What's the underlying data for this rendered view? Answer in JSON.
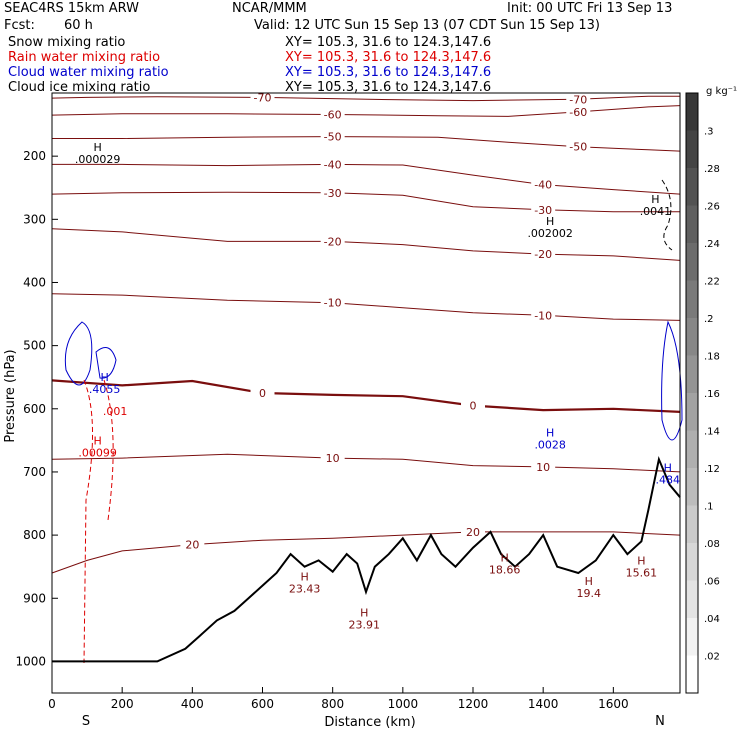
{
  "header": {
    "model": "SEAC4RS 15km ARW",
    "center": "NCAR/MMM",
    "init": "Init: 00 UTC Fri 13 Sep 13",
    "fcst_label": "Fcst:",
    "fcst_value": "60 h",
    "valid": "Valid: 12 UTC Sun 15 Sep 13 (07 CDT Sun 15 Sep 13)"
  },
  "legend": [
    {
      "label": "Snow mixing ratio",
      "xy": "XY= 105.3, 31.6 to 124.3,147.6",
      "color": "#000000"
    },
    {
      "label": "Rain water mixing ratio",
      "xy": "XY= 105.3, 31.6 to 124.3,147.6",
      "color": "#dd0000"
    },
    {
      "label": "Cloud water mixing ratio",
      "xy": "XY= 105.3, 31.6 to 124.3,147.6",
      "color": "#0000cc"
    },
    {
      "label": "Cloud ice mixing ratio",
      "xy": "XY= 105.3, 31.6 to 124.3,147.6",
      "color": "#000000"
    }
  ],
  "chart_data": {
    "type": "line",
    "xlabel": "Distance (km)",
    "ylabel": "Pressure (hPa)",
    "xlim": [
      0,
      1790
    ],
    "ylim": [
      1050,
      100
    ],
    "x_ticks": [
      0,
      200,
      400,
      600,
      800,
      1000,
      1200,
      1400,
      1600
    ],
    "y_ticks": [
      200,
      300,
      400,
      500,
      600,
      700,
      800,
      900,
      1000
    ],
    "endpoints": {
      "left": "S",
      "right": "N"
    },
    "colorbar": {
      "unit": "g kg⁻¹",
      "ticks": [
        ".02",
        ".04",
        ".06",
        ".08",
        ".1",
        ".12",
        ".14",
        ".16",
        ".18",
        ".2",
        ".22",
        ".24",
        ".26",
        ".28",
        ".3"
      ]
    },
    "temperature_contours": [
      {
        "label": "-70",
        "color": "#7a0e0e",
        "points": [
          [
            0,
            108
          ],
          [
            100,
            107
          ],
          [
            300,
            106
          ],
          [
            600,
            107
          ],
          [
            900,
            110
          ],
          [
            1200,
            112
          ],
          [
            1500,
            110
          ],
          [
            1700,
            105
          ],
          [
            1790,
            105
          ]
        ]
      },
      {
        "label": "-60",
        "color": "#7a0e0e",
        "points": [
          [
            0,
            135
          ],
          [
            200,
            133
          ],
          [
            500,
            133
          ],
          [
            800,
            134
          ],
          [
            1100,
            136
          ],
          [
            1300,
            137
          ],
          [
            1500,
            130
          ],
          [
            1700,
            122
          ],
          [
            1790,
            120
          ]
        ]
      },
      {
        "label": "-50",
        "color": "#7a0e0e",
        "points": [
          [
            0,
            172
          ],
          [
            200,
            172
          ],
          [
            500,
            170
          ],
          [
            800,
            169
          ],
          [
            1100,
            170
          ],
          [
            1300,
            178
          ],
          [
            1500,
            185
          ],
          [
            1700,
            190
          ],
          [
            1790,
            192
          ]
        ]
      },
      {
        "label": "-40",
        "color": "#7a0e0e",
        "points": [
          [
            0,
            213
          ],
          [
            200,
            213
          ],
          [
            500,
            215
          ],
          [
            800,
            213
          ],
          [
            1000,
            214
          ],
          [
            1200,
            230
          ],
          [
            1400,
            245
          ],
          [
            1600,
            253
          ],
          [
            1790,
            260
          ]
        ]
      },
      {
        "label": "-30",
        "color": "#7a0e0e",
        "points": [
          [
            0,
            260
          ],
          [
            200,
            258
          ],
          [
            500,
            257
          ],
          [
            800,
            258
          ],
          [
            1000,
            262
          ],
          [
            1200,
            280
          ],
          [
            1400,
            285
          ],
          [
            1600,
            288
          ],
          [
            1790,
            288
          ]
        ]
      },
      {
        "label": "-20",
        "color": "#7a0e0e",
        "points": [
          [
            0,
            315
          ],
          [
            200,
            320
          ],
          [
            500,
            335
          ],
          [
            800,
            335
          ],
          [
            1000,
            340
          ],
          [
            1200,
            350
          ],
          [
            1400,
            355
          ],
          [
            1600,
            358
          ],
          [
            1790,
            365
          ]
        ]
      },
      {
        "label": "-10",
        "color": "#7a0e0e",
        "points": [
          [
            0,
            418
          ],
          [
            200,
            420
          ],
          [
            500,
            428
          ],
          [
            800,
            432
          ],
          [
            1000,
            440
          ],
          [
            1200,
            448
          ],
          [
            1400,
            452
          ],
          [
            1600,
            458
          ],
          [
            1790,
            460
          ]
        ]
      },
      {
        "label": "0",
        "color": "#7a0e0e",
        "bold": true,
        "points": [
          [
            0,
            555
          ],
          [
            200,
            563
          ],
          [
            400,
            556
          ],
          [
            600,
            575
          ],
          [
            800,
            578
          ],
          [
            1000,
            580
          ],
          [
            1200,
            595
          ],
          [
            1400,
            602
          ],
          [
            1600,
            600
          ],
          [
            1790,
            605
          ]
        ]
      },
      {
        "label": "10",
        "color": "#7a0e0e",
        "points": [
          [
            0,
            680
          ],
          [
            200,
            678
          ],
          [
            500,
            672
          ],
          [
            800,
            678
          ],
          [
            1000,
            680
          ],
          [
            1200,
            690
          ],
          [
            1400,
            692
          ],
          [
            1600,
            695
          ],
          [
            1790,
            700
          ]
        ]
      },
      {
        "label": "20",
        "color": "#7a0e0e",
        "points": [
          [
            0,
            860
          ],
          [
            100,
            840
          ],
          [
            200,
            825
          ],
          [
            400,
            815
          ],
          [
            600,
            808
          ],
          [
            800,
            805
          ],
          [
            1000,
            800
          ],
          [
            1200,
            795
          ],
          [
            1400,
            795
          ],
          [
            1600,
            795
          ],
          [
            1790,
            800
          ]
        ]
      }
    ],
    "terrain": [
      [
        0,
        1000
      ],
      [
        150,
        1000
      ],
      [
        300,
        1000
      ],
      [
        380,
        980
      ],
      [
        420,
        960
      ],
      [
        470,
        935
      ],
      [
        520,
        920
      ],
      [
        560,
        900
      ],
      [
        600,
        880
      ],
      [
        640,
        860
      ],
      [
        680,
        830
      ],
      [
        720,
        850
      ],
      [
        760,
        840
      ],
      [
        800,
        858
      ],
      [
        840,
        830
      ],
      [
        870,
        845
      ],
      [
        895,
        890
      ],
      [
        920,
        850
      ],
      [
        960,
        830
      ],
      [
        1000,
        805
      ],
      [
        1040,
        840
      ],
      [
        1080,
        800
      ],
      [
        1110,
        830
      ],
      [
        1150,
        850
      ],
      [
        1200,
        820
      ],
      [
        1250,
        795
      ],
      [
        1280,
        830
      ],
      [
        1320,
        850
      ],
      [
        1360,
        830
      ],
      [
        1400,
        800
      ],
      [
        1440,
        850
      ],
      [
        1500,
        860
      ],
      [
        1550,
        840
      ],
      [
        1600,
        800
      ],
      [
        1640,
        830
      ],
      [
        1680,
        810
      ],
      [
        1700,
        760
      ],
      [
        1730,
        680
      ],
      [
        1760,
        720
      ],
      [
        1790,
        740
      ]
    ],
    "annotations": [
      {
        "text": "H",
        "sub": ".000029",
        "x": 130,
        "p": 208,
        "color": "#000000"
      },
      {
        "text": "H",
        "sub": ".002002",
        "x": 1420,
        "p": 325,
        "color": "#000000"
      },
      {
        "text": "H",
        "sub": ".0041",
        "x": 1720,
        "p": 290,
        "color": "#000000"
      },
      {
        "text": "H",
        "sub": ".4055",
        "x": 150,
        "p": 572,
        "color": "#0000cc"
      },
      {
        "text": "H",
        "sub": ".0028",
        "x": 1420,
        "p": 660,
        "color": "#0000cc"
      },
      {
        "text": "H",
        "sub": ".484",
        "x": 1755,
        "p": 715,
        "color": "#0000cc"
      },
      {
        "text": "",
        "sub": ".001",
        "x": 180,
        "p": 607,
        "color": "#dd0000"
      },
      {
        "text": "H",
        "sub": ".00099",
        "x": 130,
        "p": 672,
        "color": "#dd0000"
      },
      {
        "text": "H",
        "sub": "23.43",
        "x": 720,
        "p": 888,
        "color": "#7a0e0e"
      },
      {
        "text": "H",
        "sub": "23.91",
        "x": 890,
        "p": 945,
        "color": "#7a0e0e"
      },
      {
        "text": "H",
        "sub": "18.66",
        "x": 1290,
        "p": 858,
        "color": "#7a0e0e"
      },
      {
        "text": "H",
        "sub": "19.4",
        "x": 1530,
        "p": 895,
        "color": "#7a0e0e"
      },
      {
        "text": "H",
        "sub": "15.61",
        "x": 1680,
        "p": 862,
        "color": "#7a0e0e"
      }
    ]
  }
}
